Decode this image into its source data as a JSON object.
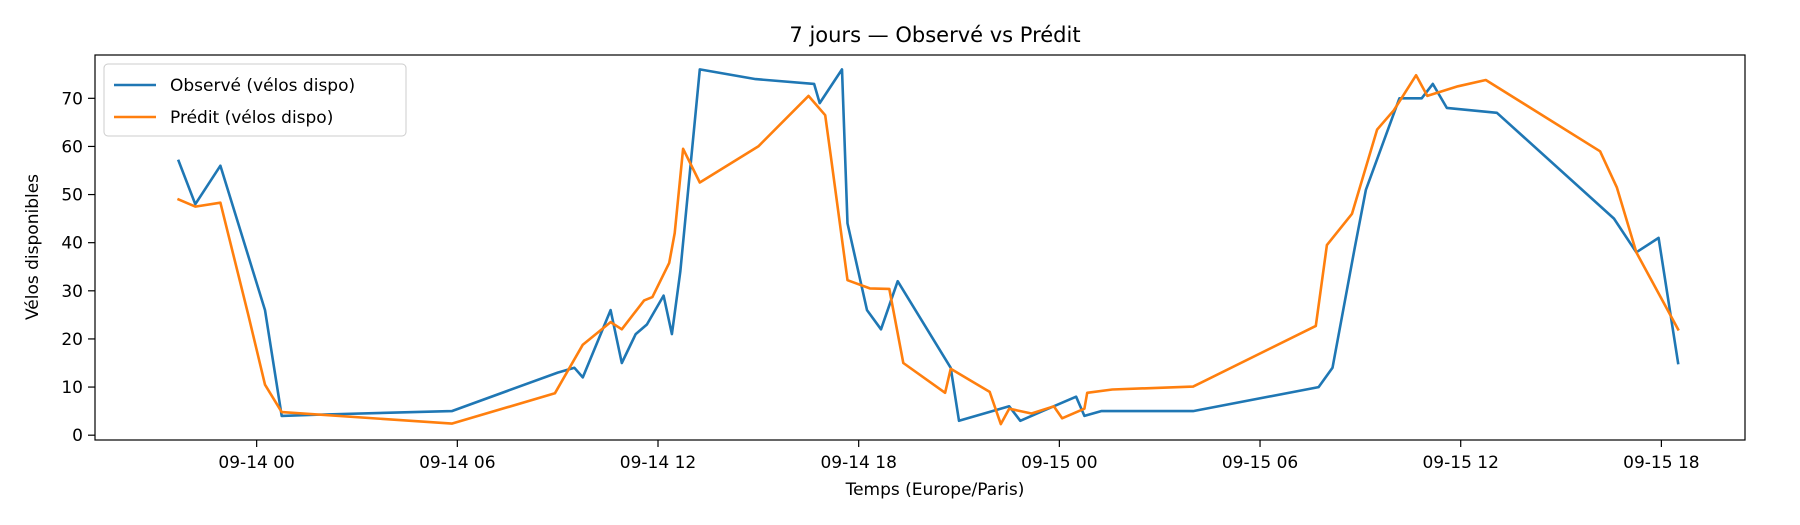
{
  "chart_data": {
    "type": "line",
    "title": "7 jours — Observé vs Prédit",
    "xlabel": "Temps (Europe/Paris)",
    "ylabel": "Vélos disponibles",
    "x_unit": "datetime (Europe/Paris)",
    "xlim": [
      "2025-09-13T19:10",
      "2025-09-15T20:30"
    ],
    "ylim": [
      -1,
      79
    ],
    "x_ticks": [
      {
        "label": "09-14 00",
        "value": "2025-09-14T00:00"
      },
      {
        "label": "09-14 06",
        "value": "2025-09-14T06:00"
      },
      {
        "label": "09-14 12",
        "value": "2025-09-14T12:00"
      },
      {
        "label": "09-14 18",
        "value": "2025-09-14T18:00"
      },
      {
        "label": "09-15 00",
        "value": "2025-09-15T00:00"
      },
      {
        "label": "09-15 06",
        "value": "2025-09-15T06:00"
      },
      {
        "label": "09-15 12",
        "value": "2025-09-15T12:00"
      },
      {
        "label": "09-15 18",
        "value": "2025-09-15T18:00"
      }
    ],
    "y_ticks": [
      0,
      10,
      20,
      30,
      40,
      50,
      60,
      70
    ],
    "grid": false,
    "legend_position": "top-left",
    "series": [
      {
        "name": "Observé (vélos dispo)",
        "color": "#1f77b4",
        "points": [
          [
            "2025-09-13T21:40",
            57
          ],
          [
            "2025-09-13T22:10",
            48
          ],
          [
            "2025-09-13T22:55",
            56
          ],
          [
            "2025-09-14T00:15",
            26
          ],
          [
            "2025-09-14T00:45",
            4
          ],
          [
            "2025-09-14T02:00",
            4.3
          ],
          [
            "2025-09-14T05:50",
            5
          ],
          [
            "2025-09-14T09:00",
            13
          ],
          [
            "2025-09-14T09:30",
            14
          ],
          [
            "2025-09-14T09:45",
            12
          ],
          [
            "2025-09-14T10:35",
            26
          ],
          [
            "2025-09-14T10:55",
            15
          ],
          [
            "2025-09-14T11:20",
            21
          ],
          [
            "2025-09-14T11:40",
            23
          ],
          [
            "2025-09-14T12:10",
            29
          ],
          [
            "2025-09-14T12:25",
            21
          ],
          [
            "2025-09-14T12:40",
            34
          ],
          [
            "2025-09-14T13:15",
            76
          ],
          [
            "2025-09-14T14:55",
            74
          ],
          [
            "2025-09-14T16:40",
            73
          ],
          [
            "2025-09-14T16:50",
            69
          ],
          [
            "2025-09-14T17:30",
            76
          ],
          [
            "2025-09-14T17:40",
            44
          ],
          [
            "2025-09-14T18:15",
            26
          ],
          [
            "2025-09-14T18:40",
            22
          ],
          [
            "2025-09-14T19:10",
            32
          ],
          [
            "2025-09-14T20:45",
            14
          ],
          [
            "2025-09-14T21:00",
            3
          ],
          [
            "2025-09-14T22:30",
            6
          ],
          [
            "2025-09-14T22:50",
            3
          ],
          [
            "2025-09-14T23:30",
            5
          ],
          [
            "2025-09-15T00:30",
            8
          ],
          [
            "2025-09-15T00:45",
            4
          ],
          [
            "2025-09-15T01:15",
            5
          ],
          [
            "2025-09-15T04:00",
            5
          ],
          [
            "2025-09-15T07:45",
            10
          ],
          [
            "2025-09-15T08:10",
            14
          ],
          [
            "2025-09-15T08:50",
            39
          ],
          [
            "2025-09-15T09:10",
            51
          ],
          [
            "2025-09-15T10:10",
            70
          ],
          [
            "2025-09-15T10:50",
            70
          ],
          [
            "2025-09-15T11:10",
            73
          ],
          [
            "2025-09-15T11:35",
            68
          ],
          [
            "2025-09-15T13:05",
            67
          ],
          [
            "2025-09-15T16:35",
            45
          ],
          [
            "2025-09-15T17:15",
            38
          ],
          [
            "2025-09-15T17:55",
            41
          ],
          [
            "2025-09-15T18:30",
            15
          ]
        ]
      },
      {
        "name": "Prédit (vélos dispo)",
        "color": "#ff7f0e",
        "points": [
          [
            "2025-09-13T21:40",
            49
          ],
          [
            "2025-09-13T22:10",
            47.5
          ],
          [
            "2025-09-13T22:55",
            48.3
          ],
          [
            "2025-09-13T23:45",
            25
          ],
          [
            "2025-09-14T00:15",
            10.5
          ],
          [
            "2025-09-14T00:45",
            4.8
          ],
          [
            "2025-09-14T05:50",
            2.4
          ],
          [
            "2025-09-14T08:55",
            8.7
          ],
          [
            "2025-09-14T09:45",
            18.8
          ],
          [
            "2025-09-14T10:35",
            23.5
          ],
          [
            "2025-09-14T10:55",
            22
          ],
          [
            "2025-09-14T11:35",
            28
          ],
          [
            "2025-09-14T11:50",
            28.7
          ],
          [
            "2025-09-14T12:20",
            35.8
          ],
          [
            "2025-09-14T12:30",
            42
          ],
          [
            "2025-09-14T12:45",
            59.5
          ],
          [
            "2025-09-14T13:15",
            52.5
          ],
          [
            "2025-09-14T15:00",
            60
          ],
          [
            "2025-09-14T16:30",
            70.5
          ],
          [
            "2025-09-14T17:00",
            66.5
          ],
          [
            "2025-09-14T17:10",
            58
          ],
          [
            "2025-09-14T17:40",
            32.2
          ],
          [
            "2025-09-14T18:20",
            30.5
          ],
          [
            "2025-09-14T18:55",
            30.4
          ],
          [
            "2025-09-14T19:20",
            15
          ],
          [
            "2025-09-14T20:35",
            8.8
          ],
          [
            "2025-09-14T20:45",
            13.8
          ],
          [
            "2025-09-14T21:55",
            9
          ],
          [
            "2025-09-14T22:15",
            2.3
          ],
          [
            "2025-09-14T22:30",
            5.5
          ],
          [
            "2025-09-14T23:10",
            4.5
          ],
          [
            "2025-09-14T23:50",
            6
          ],
          [
            "2025-09-15T00:05",
            3.5
          ],
          [
            "2025-09-15T00:45",
            5.5
          ],
          [
            "2025-09-15T00:50",
            8.8
          ],
          [
            "2025-09-15T01:35",
            9.5
          ],
          [
            "2025-09-15T04:00",
            10.1
          ],
          [
            "2025-09-15T07:40",
            22.7
          ],
          [
            "2025-09-15T08:00",
            39.5
          ],
          [
            "2025-09-15T08:45",
            46
          ],
          [
            "2025-09-15T09:30",
            63.5
          ],
          [
            "2025-09-15T10:00",
            67.5
          ],
          [
            "2025-09-15T10:40",
            74.8
          ],
          [
            "2025-09-15T11:00",
            70.5
          ],
          [
            "2025-09-15T11:55",
            72.5
          ],
          [
            "2025-09-15T12:45",
            73.8
          ],
          [
            "2025-09-15T16:10",
            59
          ],
          [
            "2025-09-15T16:40",
            51.5
          ],
          [
            "2025-09-15T17:15",
            38
          ],
          [
            "2025-09-15T18:30",
            22
          ]
        ]
      }
    ]
  }
}
